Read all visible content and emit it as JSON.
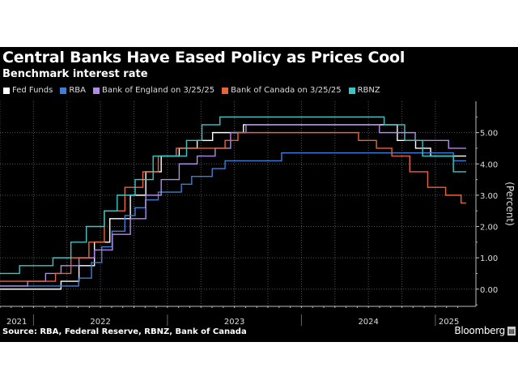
{
  "chart_data": {
    "type": "line",
    "step": true,
    "title": "Central Banks Have Eased Policy as Prices Cool",
    "subtitle": "Benchmark interest rate",
    "ylabel": "(Percent)",
    "xlabel": "",
    "xlim": [
      2021.75,
      2025.23
    ],
    "ylim": [
      -0.55,
      6.0
    ],
    "yticks": [
      "0.00",
      "1.00",
      "2.00",
      "3.00",
      "4.00",
      "5.00"
    ],
    "ytick_values": [
      0,
      1,
      2,
      3,
      4,
      5
    ],
    "xticks": [
      "2021",
      "2022",
      "2023",
      "2024",
      "2025"
    ],
    "grid": true,
    "legend_position": "top-left",
    "series": [
      {
        "name": "Fed Funds",
        "color": "#ffffff",
        "points": [
          [
            "2021-10-01",
            0
          ],
          [
            "2022-03-17",
            0.25
          ],
          [
            "2022-05-05",
            0.75
          ],
          [
            "2022-06-16",
            1.5
          ],
          [
            "2022-07-28",
            2.25
          ],
          [
            "2022-09-22",
            3.0
          ],
          [
            "2022-11-03",
            3.75
          ],
          [
            "2022-12-15",
            4.25
          ],
          [
            "2023-02-02",
            4.5
          ],
          [
            "2023-03-23",
            4.75
          ],
          [
            "2023-05-04",
            5.0
          ],
          [
            "2023-07-27",
            5.25
          ],
          [
            "2024-09-19",
            4.75
          ],
          [
            "2024-11-08",
            4.5
          ],
          [
            "2024-12-19",
            4.25
          ]
        ]
      },
      {
        "name": "RBA",
        "color": "#3d7fd6",
        "points": [
          [
            "2021-10-01",
            0.1
          ],
          [
            "2022-05-04",
            0.35
          ],
          [
            "2022-06-08",
            0.85
          ],
          [
            "2022-07-06",
            1.35
          ],
          [
            "2022-08-03",
            1.85
          ],
          [
            "2022-09-07",
            2.35
          ],
          [
            "2022-10-05",
            2.6
          ],
          [
            "2022-11-02",
            2.85
          ],
          [
            "2022-12-07",
            3.1
          ],
          [
            "2023-02-08",
            3.35
          ],
          [
            "2023-03-08",
            3.6
          ],
          [
            "2023-05-03",
            3.85
          ],
          [
            "2023-06-07",
            4.1
          ],
          [
            "2023-11-08",
            4.35
          ],
          [
            "2025-02-19",
            4.1
          ]
        ]
      },
      {
        "name": "Bank of England on 3/25/25",
        "color": "#b28be8",
        "points": [
          [
            "2021-10-01",
            0.1
          ],
          [
            "2021-12-16",
            0.25
          ],
          [
            "2022-02-03",
            0.5
          ],
          [
            "2022-03-17",
            0.75
          ],
          [
            "2022-05-05",
            1.0
          ],
          [
            "2022-06-16",
            1.25
          ],
          [
            "2022-08-04",
            1.75
          ],
          [
            "2022-09-22",
            2.25
          ],
          [
            "2022-11-03",
            3.0
          ],
          [
            "2022-12-15",
            3.5
          ],
          [
            "2023-02-02",
            4.0
          ],
          [
            "2023-03-23",
            4.25
          ],
          [
            "2023-05-11",
            4.5
          ],
          [
            "2023-06-22",
            5.0
          ],
          [
            "2023-08-03",
            5.25
          ],
          [
            "2024-08-01",
            5.0
          ],
          [
            "2024-11-07",
            4.75
          ],
          [
            "2025-02-06",
            4.5
          ]
        ]
      },
      {
        "name": "Bank of Canada on 3/25/25",
        "color": "#e8653a",
        "points": [
          [
            "2021-10-01",
            0.25
          ],
          [
            "2022-03-02",
            0.5
          ],
          [
            "2022-04-13",
            1.0
          ],
          [
            "2022-06-01",
            1.5
          ],
          [
            "2022-07-13",
            2.5
          ],
          [
            "2022-09-07",
            3.25
          ],
          [
            "2022-10-26",
            3.75
          ],
          [
            "2022-12-07",
            4.25
          ],
          [
            "2023-01-25",
            4.5
          ],
          [
            "2023-06-07",
            4.75
          ],
          [
            "2023-07-12",
            5.0
          ],
          [
            "2024-06-05",
            4.75
          ],
          [
            "2024-07-24",
            4.5
          ],
          [
            "2024-09-04",
            4.25
          ],
          [
            "2024-10-23",
            3.75
          ],
          [
            "2024-12-11",
            3.25
          ],
          [
            "2025-01-29",
            3.0
          ],
          [
            "2025-03-12",
            2.75
          ]
        ]
      },
      {
        "name": "RBNZ",
        "color": "#3cc6c6",
        "points": [
          [
            "2021-10-01",
            0.5
          ],
          [
            "2021-11-24",
            0.75
          ],
          [
            "2022-02-23",
            1.0
          ],
          [
            "2022-04-13",
            1.5
          ],
          [
            "2022-05-25",
            2.0
          ],
          [
            "2022-07-13",
            2.5
          ],
          [
            "2022-08-17",
            3.0
          ],
          [
            "2022-10-05",
            3.5
          ],
          [
            "2022-11-23",
            4.25
          ],
          [
            "2023-02-22",
            4.75
          ],
          [
            "2023-04-05",
            5.25
          ],
          [
            "2023-05-24",
            5.5
          ],
          [
            "2024-08-14",
            5.25
          ],
          [
            "2024-10-09",
            4.75
          ],
          [
            "2024-11-27",
            4.25
          ],
          [
            "2025-02-19",
            3.75
          ]
        ]
      }
    ]
  },
  "footer": {
    "source": "Source: RBA, Federal Reserve, RBNZ, Bank of Canada",
    "brand": "Bloomberg"
  }
}
